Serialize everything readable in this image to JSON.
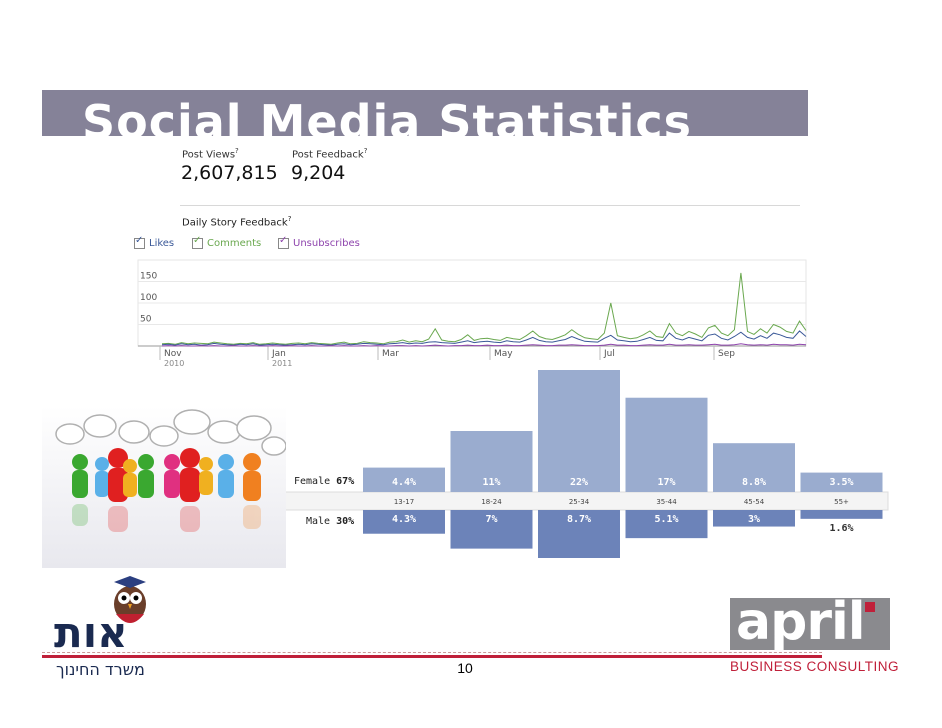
{
  "slide": {
    "title": "Social Media Statistics",
    "page_number": "10"
  },
  "stats": {
    "post_views_label": "Post Views",
    "post_views_value": "2,607,815",
    "post_feedback_label": "Post Feedback",
    "post_feedback_value": "9,204",
    "help_mark": "?"
  },
  "feedback_chart": {
    "title": "Daily Story Feedback",
    "help_mark": "?",
    "legend": [
      {
        "label": "Likes",
        "color": "#3b5998"
      },
      {
        "label": "Comments",
        "color": "#6aa84f"
      },
      {
        "label": "Unsubscribes",
        "color": "#8e44ad"
      }
    ]
  },
  "logos": {
    "edu_caption": "משרד החינוך",
    "edu_name": "אות",
    "april_name": "april",
    "april_tagline": "BUSINESS CONSULTING"
  },
  "chart_data": [
    {
      "type": "line",
      "title": "Daily Story Feedback",
      "x_tick_labels": [
        {
          "label": "Nov",
          "sublabel": "2010"
        },
        {
          "label": "Jan",
          "sublabel": "2011"
        },
        {
          "label": "Mar",
          "sublabel": ""
        },
        {
          "label": "May",
          "sublabel": ""
        },
        {
          "label": "Jul",
          "sublabel": ""
        },
        {
          "label": "Sep",
          "sublabel": ""
        }
      ],
      "y_ticks": [
        "50",
        "100",
        "150"
      ],
      "ylim": [
        0,
        200
      ],
      "series": [
        {
          "name": "Likes",
          "color": "#3b5998",
          "values": [
            3,
            4,
            2,
            5,
            3,
            4,
            2,
            3,
            6,
            4,
            3,
            2,
            4,
            3,
            5,
            2,
            3,
            4,
            3,
            2,
            3,
            4,
            3,
            5,
            4,
            3,
            2,
            4,
            5,
            3,
            4,
            6,
            5,
            4,
            3,
            5,
            6,
            8,
            5,
            7,
            6,
            9,
            10,
            8,
            7,
            6,
            9,
            12,
            8,
            10,
            11,
            9,
            8,
            12,
            10,
            9,
            14,
            20,
            13,
            10,
            9,
            12,
            15,
            22,
            16,
            11,
            10,
            9,
            18,
            25,
            14,
            12,
            10,
            11,
            15,
            20,
            13,
            12,
            30,
            18,
            14,
            20,
            16,
            12,
            25,
            28,
            18,
            14,
            22,
            32,
            20,
            16,
            24,
            18,
            30,
            26,
            20,
            18,
            35,
            22
          ]
        },
        {
          "name": "Comments",
          "color": "#6aa84f",
          "values": [
            5,
            6,
            4,
            8,
            5,
            7,
            6,
            5,
            9,
            7,
            5,
            4,
            6,
            5,
            8,
            4,
            5,
            7,
            5,
            4,
            6,
            7,
            5,
            8,
            6,
            5,
            4,
            7,
            9,
            5,
            6,
            10,
            8,
            7,
            5,
            9,
            10,
            14,
            9,
            12,
            10,
            16,
            40,
            14,
            11,
            10,
            15,
            26,
            13,
            17,
            18,
            15,
            13,
            20,
            17,
            15,
            24,
            35,
            22,
            17,
            15,
            20,
            26,
            38,
            27,
            19,
            17,
            15,
            30,
            100,
            24,
            20,
            17,
            19,
            26,
            35,
            22,
            20,
            52,
            30,
            24,
            34,
            28,
            20,
            42,
            48,
            30,
            24,
            38,
            170,
            34,
            27,
            40,
            30,
            50,
            44,
            34,
            30,
            58,
            36
          ]
        },
        {
          "name": "Unsubscribes",
          "color": "#8e44ad",
          "values": [
            0,
            1,
            0,
            1,
            0,
            0,
            1,
            0,
            1,
            0,
            0,
            1,
            0,
            0,
            1,
            0,
            0,
            1,
            0,
            0,
            1,
            0,
            0,
            1,
            0,
            0,
            1,
            0,
            1,
            0,
            0,
            1,
            0,
            1,
            0,
            0,
            1,
            1,
            0,
            1,
            0,
            1,
            2,
            1,
            0,
            1,
            1,
            2,
            1,
            1,
            2,
            1,
            1,
            2,
            1,
            1,
            2,
            3,
            2,
            1,
            1,
            2,
            2,
            3,
            2,
            1,
            1,
            1,
            2,
            4,
            2,
            2,
            1,
            1,
            2,
            3,
            2,
            2,
            4,
            2,
            2,
            3,
            2,
            2,
            3,
            4,
            2,
            2,
            3,
            5,
            3,
            2,
            3,
            2,
            4,
            3,
            3,
            2,
            4,
            3
          ]
        }
      ]
    },
    {
      "type": "bar",
      "title": "",
      "categories": [
        "13-17",
        "18-24",
        "25-34",
        "35-44",
        "45-54",
        "55+"
      ],
      "series": [
        {
          "name": "Female",
          "total_label": "67%",
          "labels": [
            "4.4%",
            "11%",
            "22%",
            "17%",
            "8.8%",
            "3.5%"
          ],
          "values": [
            4.4,
            11,
            22,
            17,
            8.8,
            3.5
          ],
          "color": "#9aaccf"
        },
        {
          "name": "Male",
          "total_label": "30%",
          "labels": [
            "4.3%",
            "7%",
            "8.7%",
            "5.1%",
            "3%",
            "1.6%"
          ],
          "values": [
            4.3,
            7,
            8.7,
            5.1,
            3,
            1.6
          ],
          "color": "#6c83b9"
        }
      ]
    }
  ]
}
